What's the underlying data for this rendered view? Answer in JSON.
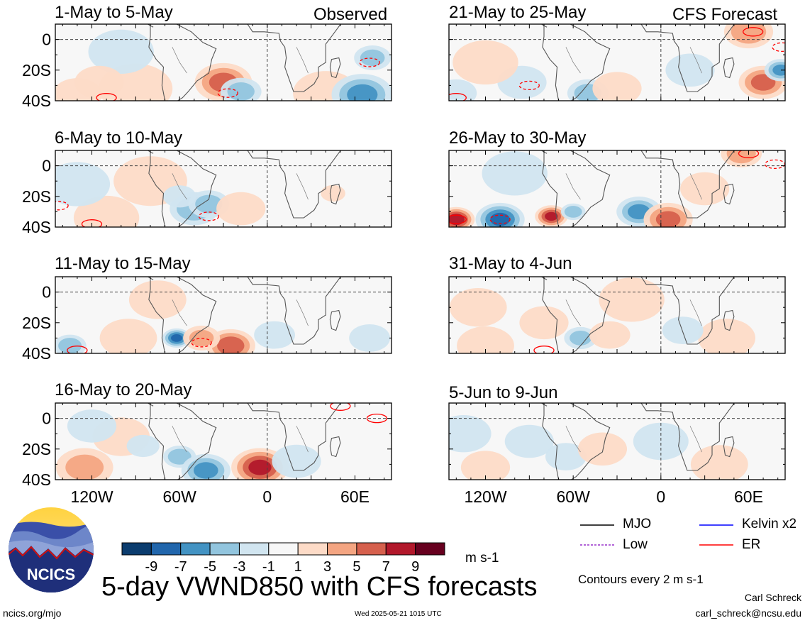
{
  "main_title": "5-day VWND850 with CFS forecasts",
  "observed_label": "Observed",
  "forecast_label": "CFS Forecast",
  "logo_text": "NCICS",
  "site": "ncics.org/mjo",
  "timestamp": "Wed 2025-05-21 1015 UTC",
  "author": "Carl Schreck",
  "email": "carl_schreck@ncsu.edu",
  "contour_note": "Contours every 2 m s-1",
  "units": "m s-1",
  "colorbar": {
    "ticks": [
      "-9",
      "-7",
      "-5",
      "-3",
      "-1",
      "1",
      "3",
      "5",
      "7",
      "9"
    ],
    "colors": [
      "#0b3c6e",
      "#2166ac",
      "#4393c3",
      "#92c5de",
      "#d1e5f0",
      "#f7f7f7",
      "#fddbc7",
      "#f4a582",
      "#d6604d",
      "#b2182b",
      "#67001f"
    ]
  },
  "contour_legend": [
    {
      "label": "MJO",
      "color": "#000000",
      "style": "solid"
    },
    {
      "label": "Kelvin x2",
      "color": "#0000ff",
      "style": "solid"
    },
    {
      "label": "Low",
      "color": "#9932cc",
      "style": "dashed"
    },
    {
      "label": "ER",
      "color": "#ff0000",
      "style": "solid"
    }
  ],
  "chart_data": [
    {
      "type": "heatmap",
      "title": "1-May to 5-May",
      "source": "Observed",
      "yticks": [
        "0",
        "20S",
        "40S"
      ],
      "xticks": [
        "120W",
        "60W",
        "0",
        "60E"
      ],
      "ylim": [
        "40S",
        "10N"
      ],
      "xlim": [
        "145W",
        "85E"
      ]
    },
    {
      "type": "heatmap",
      "title": "6-May to 10-May",
      "source": "Observed",
      "yticks": [
        "0",
        "20S",
        "40S"
      ],
      "xticks": [
        "120W",
        "60W",
        "0",
        "60E"
      ]
    },
    {
      "type": "heatmap",
      "title": "11-May to 15-May",
      "source": "Observed",
      "yticks": [
        "0",
        "20S",
        "40S"
      ],
      "xticks": [
        "120W",
        "60W",
        "0",
        "60E"
      ]
    },
    {
      "type": "heatmap",
      "title": "16-May to 20-May",
      "source": "Observed",
      "yticks": [
        "0",
        "20S",
        "40S"
      ],
      "xticks": [
        "120W",
        "60W",
        "0",
        "60E"
      ]
    },
    {
      "type": "heatmap",
      "title": "21-May to 25-May",
      "source": "CFS Forecast",
      "xticks": [
        "120W",
        "60W",
        "0",
        "60E"
      ]
    },
    {
      "type": "heatmap",
      "title": "26-May to 30-May",
      "source": "CFS Forecast",
      "xticks": [
        "120W",
        "60W",
        "0",
        "60E"
      ]
    },
    {
      "type": "heatmap",
      "title": "31-May to 4-Jun",
      "source": "CFS Forecast",
      "xticks": [
        "120W",
        "60W",
        "0",
        "60E"
      ]
    },
    {
      "type": "heatmap",
      "title": "5-Jun to 9-Jun",
      "source": "CFS Forecast",
      "xticks": [
        "120W",
        "60W",
        "0",
        "60E"
      ]
    }
  ],
  "panel_features": [
    [
      {
        "lon": -90,
        "lat": -32,
        "r": 18,
        "v": 3
      },
      {
        "lon": -30,
        "lat": -28,
        "r": 14,
        "v": 6
      },
      {
        "lon": -18,
        "lat": -34,
        "r": 10,
        "v": -4
      },
      {
        "lon": 40,
        "lat": -35,
        "r": 16,
        "v": 3
      },
      {
        "lon": 65,
        "lat": -36,
        "r": 15,
        "v": -6
      },
      {
        "lon": 72,
        "lat": -12,
        "r": 9,
        "v": -4
      },
      {
        "lon": -130,
        "lat": -36,
        "r": 12,
        "v": 3
      },
      {
        "lon": -100,
        "lat": -8,
        "r": 16,
        "v": -2
      },
      {
        "lon": -115,
        "lat": -28,
        "r": 12,
        "v": 2
      }
    ],
    [
      {
        "lon": -110,
        "lat": -34,
        "r": 16,
        "v": 3
      },
      {
        "lon": -50,
        "lat": -28,
        "r": 12,
        "v": -5
      },
      {
        "lon": -40,
        "lat": -25,
        "r": 10,
        "v": -4
      },
      {
        "lon": -18,
        "lat": -28,
        "r": 12,
        "v": 3
      },
      {
        "lon": 45,
        "lat": -18,
        "r": 6,
        "v": 3
      },
      {
        "lon": -80,
        "lat": -10,
        "r": 18,
        "v": 2
      },
      {
        "lon": -130,
        "lat": -12,
        "r": 16,
        "v": -2
      },
      {
        "lon": -60,
        "lat": -20,
        "r": 8,
        "v": -3
      }
    ],
    [
      {
        "lon": -62,
        "lat": -30,
        "r": 7,
        "v": -8
      },
      {
        "lon": -25,
        "lat": -35,
        "r": 12,
        "v": 7
      },
      {
        "lon": -45,
        "lat": -30,
        "r": 9,
        "v": 4
      },
      {
        "lon": -135,
        "lat": -35,
        "r": 8,
        "v": -5
      },
      {
        "lon": -95,
        "lat": -30,
        "r": 14,
        "v": 2
      },
      {
        "lon": 5,
        "lat": -28,
        "r": 10,
        "v": -3
      },
      {
        "lon": -75,
        "lat": -5,
        "r": 14,
        "v": 3
      },
      {
        "lon": 70,
        "lat": -30,
        "r": 10,
        "v": -3
      }
    ],
    [
      {
        "lon": -5,
        "lat": -32,
        "r": 14,
        "v": 8
      },
      {
        "lon": -60,
        "lat": -25,
        "r": 8,
        "v": -5
      },
      {
        "lon": -42,
        "lat": -34,
        "r": 12,
        "v": -6
      },
      {
        "lon": -125,
        "lat": -32,
        "r": 14,
        "v": 4
      },
      {
        "lon": -100,
        "lat": -12,
        "r": 14,
        "v": 2
      },
      {
        "lon": -85,
        "lat": -18,
        "r": 8,
        "v": -2
      },
      {
        "lon": 20,
        "lat": -28,
        "r": 12,
        "v": -2
      },
      {
        "lon": -120,
        "lat": -5,
        "r": 12,
        "v": -2
      }
    ],
    [
      {
        "lon": 70,
        "lat": -28,
        "r": 12,
        "v": 6
      },
      {
        "lon": 60,
        "lat": 5,
        "r": 12,
        "v": 5
      },
      {
        "lon": -95,
        "lat": -28,
        "r": 12,
        "v": -3
      },
      {
        "lon": -50,
        "lat": -35,
        "r": 10,
        "v": -4
      },
      {
        "lon": -30,
        "lat": -32,
        "r": 12,
        "v": 3
      },
      {
        "lon": -120,
        "lat": -15,
        "r": 16,
        "v": 2
      },
      {
        "lon": 82,
        "lat": -20,
        "r": 8,
        "v": -6
      },
      {
        "lon": 20,
        "lat": -20,
        "r": 12,
        "v": -2
      },
      {
        "lon": -140,
        "lat": -35,
        "r": 10,
        "v": -3
      }
    ],
    [
      {
        "lon": -140,
        "lat": -35,
        "r": 9,
        "v": 9
      },
      {
        "lon": -110,
        "lat": -35,
        "r": 12,
        "v": -8
      },
      {
        "lon": -75,
        "lat": -33,
        "r": 8,
        "v": 8
      },
      {
        "lon": -60,
        "lat": -30,
        "r": 6,
        "v": -5
      },
      {
        "lon": -15,
        "lat": -30,
        "r": 11,
        "v": -6
      },
      {
        "lon": 5,
        "lat": -35,
        "r": 12,
        "v": 6
      },
      {
        "lon": 55,
        "lat": 8,
        "r": 10,
        "v": 5
      },
      {
        "lon": -100,
        "lat": -5,
        "r": 16,
        "v": -2
      },
      {
        "lon": 30,
        "lat": -15,
        "r": 12,
        "v": 2
      }
    ],
    [
      {
        "lon": -80,
        "lat": -20,
        "r": 12,
        "v": 3
      },
      {
        "lon": -120,
        "lat": -35,
        "r": 14,
        "v": 3
      },
      {
        "lon": -55,
        "lat": -30,
        "r": 8,
        "v": -4
      },
      {
        "lon": -35,
        "lat": -28,
        "r": 10,
        "v": 3
      },
      {
        "lon": 45,
        "lat": -30,
        "r": 14,
        "v": 3
      },
      {
        "lon": -125,
        "lat": -10,
        "r": 14,
        "v": 2
      },
      {
        "lon": -20,
        "lat": -5,
        "r": 16,
        "v": 2
      },
      {
        "lon": 15,
        "lat": -25,
        "r": 10,
        "v": -2
      }
    ],
    [
      {
        "lon": -120,
        "lat": -32,
        "r": 12,
        "v": 2
      },
      {
        "lon": -90,
        "lat": -15,
        "r": 12,
        "v": -2
      },
      {
        "lon": -65,
        "lat": -25,
        "r": 10,
        "v": -2
      },
      {
        "lon": -40,
        "lat": -20,
        "r": 12,
        "v": 2
      },
      {
        "lon": 0,
        "lat": -15,
        "r": 12,
        "v": -1.5
      },
      {
        "lon": 40,
        "lat": -30,
        "r": 14,
        "v": 2
      },
      {
        "lon": -135,
        "lat": -10,
        "r": 12,
        "v": -1.5
      }
    ]
  ],
  "panel_er_contours": [
    [
      {
        "lon": -110,
        "lat": -38,
        "style": "solid"
      },
      {
        "lon": -27,
        "lat": -35,
        "style": "dashed"
      },
      {
        "lon": 70,
        "lat": -15,
        "style": "dashed"
      }
    ],
    [
      {
        "lon": -120,
        "lat": -38,
        "style": "solid"
      },
      {
        "lon": -40,
        "lat": -33,
        "style": "dashed"
      },
      {
        "lon": -143,
        "lat": -26,
        "style": "dashed"
      }
    ],
    [
      {
        "lon": -130,
        "lat": -38,
        "style": "solid"
      },
      {
        "lon": -45,
        "lat": -33,
        "style": "dashed"
      }
    ],
    [
      {
        "lon": 50,
        "lat": 8,
        "style": "solid"
      },
      {
        "lon": 75,
        "lat": 0,
        "style": "solid"
      }
    ],
    [
      {
        "lon": 63,
        "lat": 5,
        "style": "solid"
      },
      {
        "lon": -90,
        "lat": -30,
        "style": "dashed"
      },
      {
        "lon": -140,
        "lat": -38,
        "style": "solid"
      },
      {
        "lon": 83,
        "lat": -5,
        "style": "dashed"
      }
    ],
    [
      {
        "lon": -140,
        "lat": -35,
        "style": "solid"
      },
      {
        "lon": -110,
        "lat": -35,
        "style": "dashed"
      },
      {
        "lon": 60,
        "lat": 8,
        "style": "solid"
      },
      {
        "lon": 78,
        "lat": 1,
        "style": "dashed"
      }
    ],
    [
      {
        "lon": -80,
        "lat": -38,
        "style": "solid"
      }
    ],
    []
  ]
}
